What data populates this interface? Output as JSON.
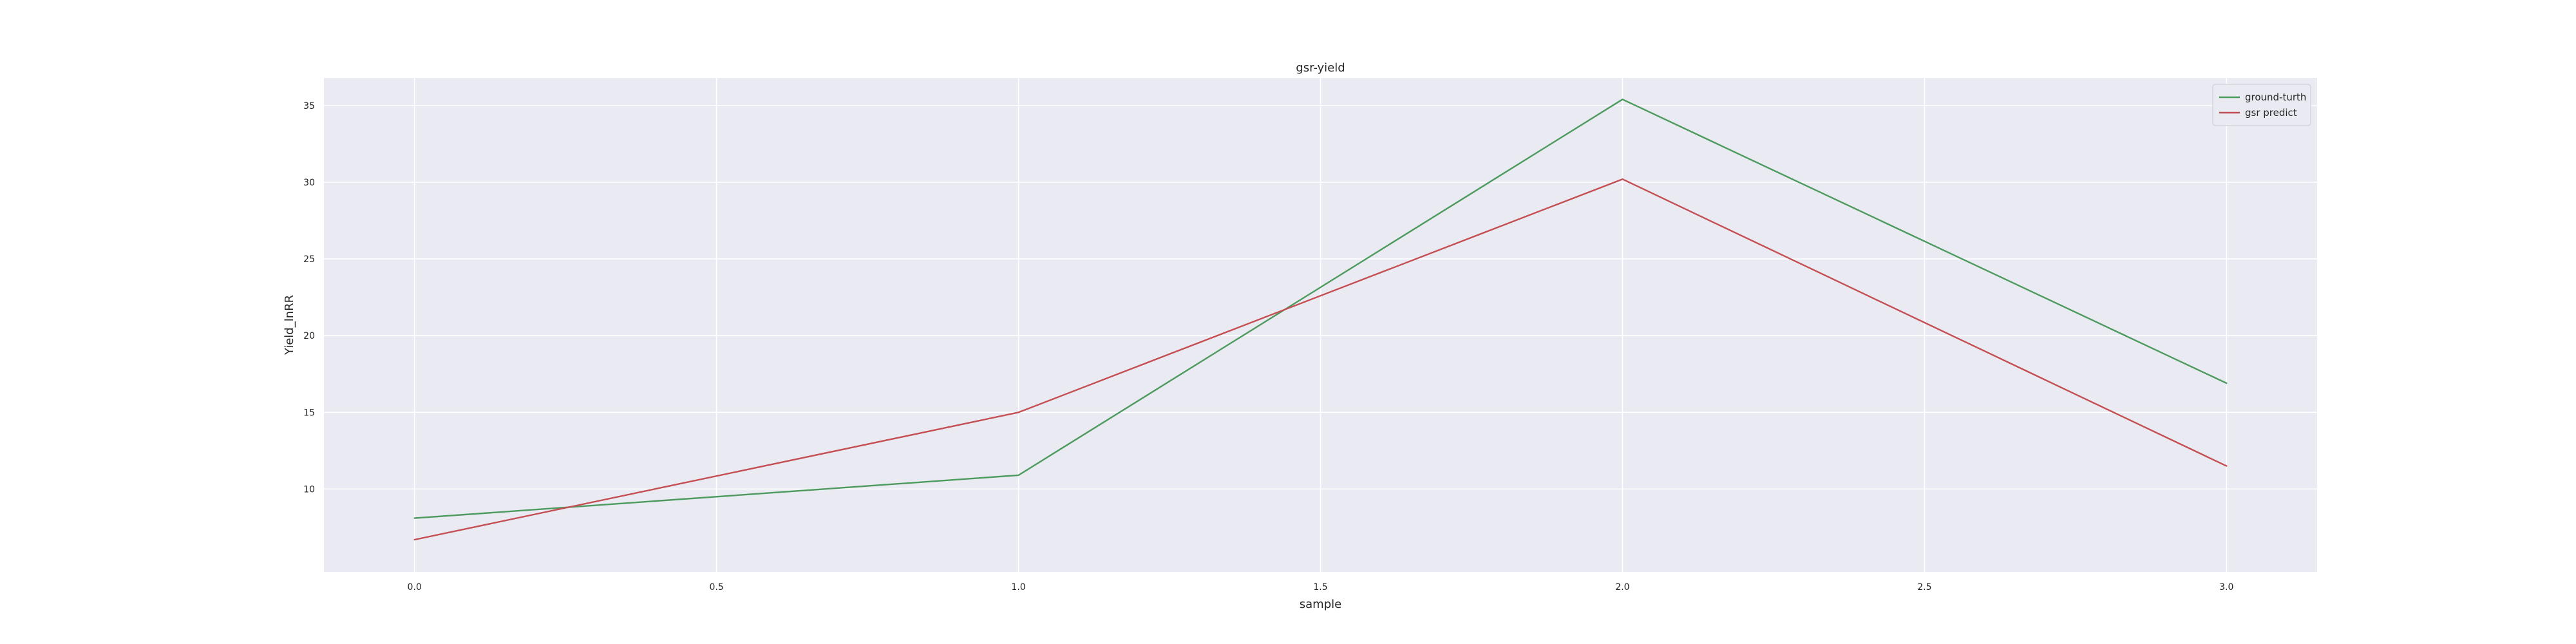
{
  "chart_data": {
    "type": "line",
    "title": "gsr-yield",
    "xlabel": "sample",
    "ylabel": "Yield_lnRR",
    "x": [
      0,
      1,
      2,
      3
    ],
    "series": [
      {
        "name": "ground-turth",
        "color": "#4c9a5e",
        "values": [
          8.1,
          10.9,
          35.4,
          16.9
        ]
      },
      {
        "name": "gsr predict",
        "color": "#c44e52",
        "values": [
          6.7,
          15.0,
          30.2,
          11.5
        ]
      }
    ],
    "xlim": [
      -0.15,
      3.15
    ],
    "ylim": [
      4.6,
      36.8
    ],
    "xticks": [
      0.0,
      0.5,
      1.0,
      1.5,
      2.0,
      2.5,
      3.0
    ],
    "xtick_labels": [
      "0.0",
      "0.5",
      "1.0",
      "1.5",
      "2.0",
      "2.5",
      "3.0"
    ],
    "yticks": [
      10,
      15,
      20,
      25,
      30,
      35
    ],
    "ytick_labels": [
      "10",
      "15",
      "20",
      "25",
      "30",
      "35"
    ],
    "grid": true,
    "legend_position": "top-right",
    "colors": {
      "background": "#eaeaf2",
      "grid": "#ffffff",
      "text": "#262626"
    }
  }
}
